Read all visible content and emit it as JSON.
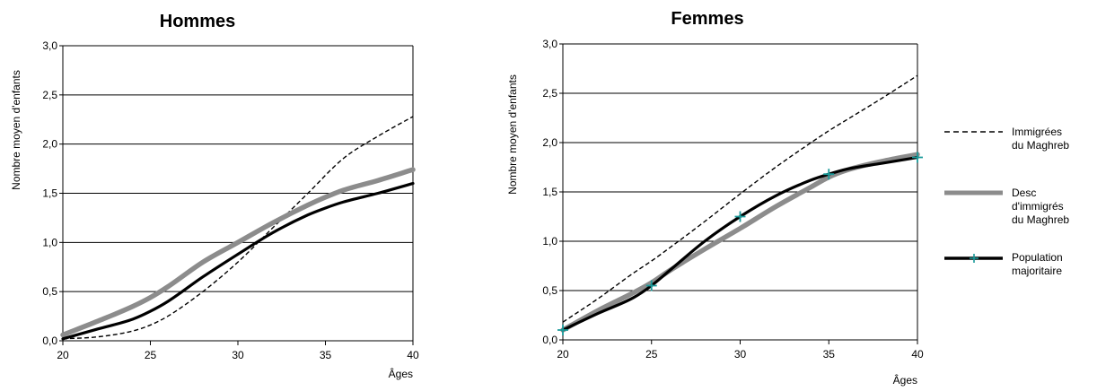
{
  "chart_data": [
    {
      "type": "line",
      "title": "Hommes",
      "xlabel": "Âges",
      "ylabel": "Nombre moyen d'enfants",
      "xlim": [
        20,
        40
      ],
      "ylim": [
        0,
        3
      ],
      "x_ticks": [
        "20",
        "25",
        "30",
        "35",
        "40"
      ],
      "y_ticks": [
        "0,0",
        "0,5",
        "1,0",
        "1,5",
        "2,0",
        "2,5",
        "3,0"
      ],
      "grid": "horizontal",
      "series": [
        {
          "name": "Immigrées du Maghreb",
          "style": "dashed",
          "color": "#000000",
          "points": [
            [
              20,
              0.02
            ],
            [
              22,
              0.04
            ],
            [
              24,
              0.1
            ],
            [
              25,
              0.16
            ],
            [
              26,
              0.25
            ],
            [
              28,
              0.5
            ],
            [
              30,
              0.8
            ],
            [
              32,
              1.15
            ],
            [
              34,
              1.5
            ],
            [
              36,
              1.85
            ],
            [
              38,
              2.08
            ],
            [
              40,
              2.28
            ]
          ]
        },
        {
          "name": "Desc d'immigrés du Maghreb",
          "style": "thick-gray",
          "color": "#8c8c8c",
          "points": [
            [
              20,
              0.06
            ],
            [
              22,
              0.2
            ],
            [
              24,
              0.35
            ],
            [
              25,
              0.44
            ],
            [
              26,
              0.55
            ],
            [
              28,
              0.8
            ],
            [
              30,
              1.0
            ],
            [
              32,
              1.2
            ],
            [
              34,
              1.38
            ],
            [
              35,
              1.46
            ],
            [
              36,
              1.53
            ],
            [
              38,
              1.63
            ],
            [
              40,
              1.74
            ]
          ]
        },
        {
          "name": "Population majoritaire",
          "style": "solid-black",
          "color": "#000000",
          "points": [
            [
              20,
              0.02
            ],
            [
              22,
              0.12
            ],
            [
              24,
              0.22
            ],
            [
              25,
              0.3
            ],
            [
              26,
              0.4
            ],
            [
              28,
              0.65
            ],
            [
              30,
              0.88
            ],
            [
              32,
              1.1
            ],
            [
              34,
              1.28
            ],
            [
              35,
              1.35
            ],
            [
              36,
              1.41
            ],
            [
              38,
              1.5
            ],
            [
              40,
              1.6
            ]
          ]
        }
      ]
    },
    {
      "type": "line",
      "title": "Femmes",
      "xlabel": "Âges",
      "ylabel": "Nombre moyen d'enfants",
      "xlim": [
        20,
        40
      ],
      "ylim": [
        0,
        3
      ],
      "x_ticks": [
        "20",
        "25",
        "30",
        "35",
        "40"
      ],
      "y_ticks": [
        "0,0",
        "0,5",
        "1,0",
        "1,5",
        "2,0",
        "2,5",
        "3,0"
      ],
      "grid": "horizontal",
      "legend_position": "right",
      "series": [
        {
          "name": "Immigrées du Maghreb",
          "style": "dashed",
          "color": "#000000",
          "points": [
            [
              20,
              0.18
            ],
            [
              22,
              0.42
            ],
            [
              24,
              0.68
            ],
            [
              25,
              0.8
            ],
            [
              26,
              0.93
            ],
            [
              28,
              1.2
            ],
            [
              30,
              1.48
            ],
            [
              32,
              1.75
            ],
            [
              34,
              2.0
            ],
            [
              35,
              2.12
            ],
            [
              36,
              2.23
            ],
            [
              38,
              2.45
            ],
            [
              40,
              2.68
            ]
          ]
        },
        {
          "name": "Desc d'immigrés du Maghreb",
          "style": "thick-gray",
          "color": "#8c8c8c",
          "points": [
            [
              20,
              0.1
            ],
            [
              22,
              0.3
            ],
            [
              24,
              0.48
            ],
            [
              25,
              0.58
            ],
            [
              26,
              0.7
            ],
            [
              28,
              0.92
            ],
            [
              30,
              1.13
            ],
            [
              32,
              1.35
            ],
            [
              34,
              1.55
            ],
            [
              35,
              1.65
            ],
            [
              36,
              1.72
            ],
            [
              38,
              1.81
            ],
            [
              40,
              1.88
            ]
          ]
        },
        {
          "name": "Population majoritaire",
          "style": "solid-black",
          "color": "#000000",
          "marker": "+",
          "marker_color": "#1a9a9a",
          "points": [
            [
              20,
              0.1
            ],
            [
              22,
              0.27
            ],
            [
              24,
              0.43
            ],
            [
              25,
              0.55
            ],
            [
              26,
              0.7
            ],
            [
              28,
              1.0
            ],
            [
              30,
              1.25
            ],
            [
              32,
              1.46
            ],
            [
              34,
              1.62
            ],
            [
              35,
              1.68
            ],
            [
              36,
              1.73
            ],
            [
              38,
              1.79
            ],
            [
              40,
              1.85
            ]
          ],
          "markers": [
            [
              20,
              0.1
            ],
            [
              25,
              0.55
            ],
            [
              30,
              1.25
            ],
            [
              35,
              1.68
            ],
            [
              40,
              1.85
            ]
          ]
        }
      ]
    }
  ],
  "legend": [
    {
      "line1": "Immigrées",
      "line2": "du Maghreb",
      "line3": "",
      "style": "dashed"
    },
    {
      "line1": "Desc",
      "line2": "d'immigrés",
      "line3": "du Maghreb",
      "style": "thick-gray"
    },
    {
      "line1": "Population",
      "line2": "majoritaire",
      "line3": "",
      "style": "solid-black"
    }
  ],
  "colors": {
    "gray_line": "#8c8c8c",
    "marker": "#1a9a9a",
    "grid": "#000000"
  }
}
